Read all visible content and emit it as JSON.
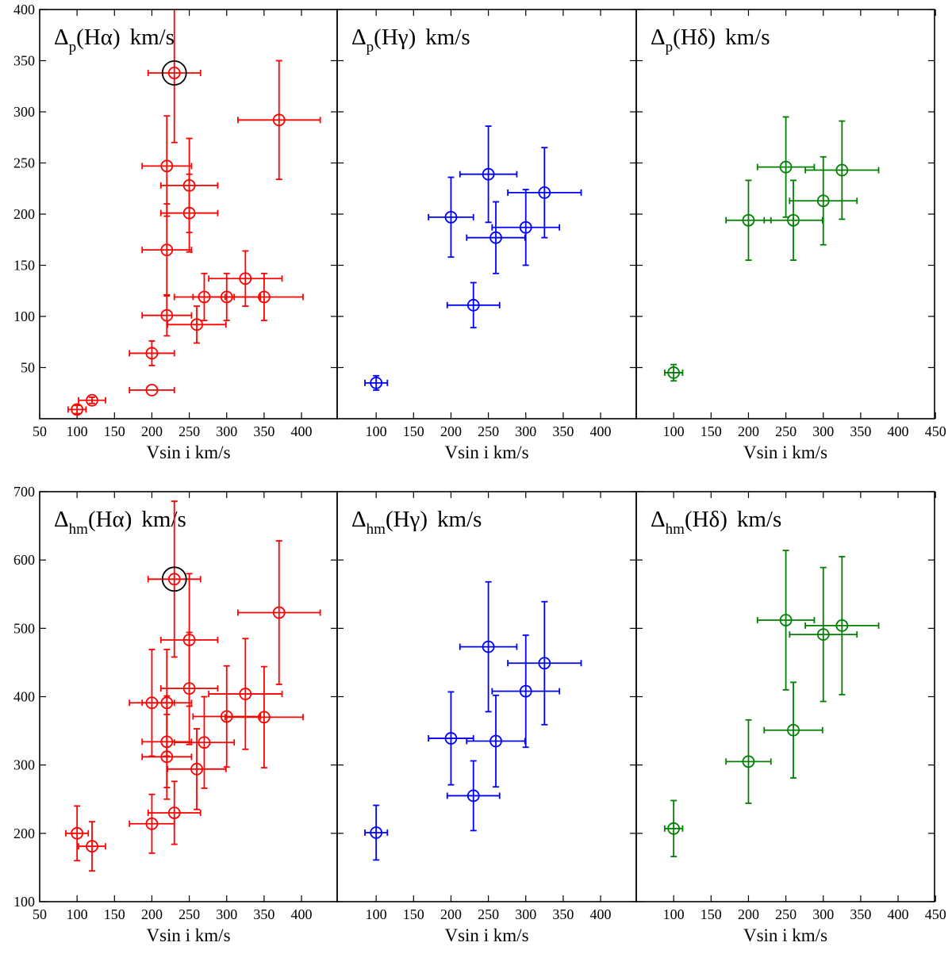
{
  "figure": {
    "xlabel": "Vsin i  km/s",
    "x_tick_labels_left": [
      "50",
      "100",
      "150",
      "200",
      "250",
      "300",
      "350",
      "400"
    ],
    "x_tick_labels_mid": [
      "100",
      "150",
      "200",
      "250",
      "300",
      "350",
      "400"
    ],
    "x_tick_labels_right": [
      "100",
      "150",
      "200",
      "250",
      "300",
      "350",
      "400",
      "450"
    ],
    "y_tick_labels_top": [
      "50",
      "100",
      "150",
      "200",
      "250",
      "300",
      "350",
      "400"
    ],
    "y_tick_labels_bottom": [
      "100",
      "200",
      "300",
      "400",
      "500",
      "600",
      "700"
    ],
    "colors": {
      "halpha": "#ff0000",
      "hgamma": "#0000ff",
      "hdelta": "#008000",
      "highlight": "#000000"
    }
  },
  "chart_data": [
    {
      "type": "scatter",
      "title": {
        "prefix": "Δ",
        "sub": "p",
        "line": "(Hα)",
        "unit": "km/s"
      },
      "xlabel": "Vsin i  km/s",
      "ylabel": "",
      "xlim": [
        50,
        440
      ],
      "ylim": [
        0,
        400
      ],
      "color": "#ff0000",
      "points": [
        {
          "x": 100,
          "y": 9,
          "xerr": 12,
          "yerr": 4
        },
        {
          "x": 120,
          "y": 18,
          "xerr": 18,
          "yerr": 3
        },
        {
          "x": 200,
          "y": 28,
          "xerr": 30,
          "yerr": 0
        },
        {
          "x": 200,
          "y": 64,
          "xerr": 30,
          "yerr": 12
        },
        {
          "x": 220,
          "y": 101,
          "xerr": 33,
          "yerr": 20
        },
        {
          "x": 220,
          "y": 165,
          "xerr": 33,
          "yerr": 45
        },
        {
          "x": 220,
          "y": 247,
          "xerr": 33,
          "yerr": 49
        },
        {
          "x": 230,
          "y": 338,
          "xerr": 35,
          "yerr": 68,
          "highlight": true
        },
        {
          "x": 250,
          "y": 228,
          "xerr": 38,
          "yerr": 46
        },
        {
          "x": 250,
          "y": 201,
          "xerr": 38,
          "yerr": 38
        },
        {
          "x": 260,
          "y": 92,
          "xerr": 39,
          "yerr": 18
        },
        {
          "x": 270,
          "y": 119,
          "xerr": 40,
          "yerr": 23
        },
        {
          "x": 300,
          "y": 119,
          "xerr": 45,
          "yerr": 23
        },
        {
          "x": 325,
          "y": 137,
          "xerr": 49,
          "yerr": 27
        },
        {
          "x": 350,
          "y": 119,
          "xerr": 52,
          "yerr": 23
        },
        {
          "x": 370,
          "y": 292,
          "xerr": 55,
          "yerr": 58
        }
      ]
    },
    {
      "type": "scatter",
      "title": {
        "prefix": "Δ",
        "sub": "p",
        "line": "(Hγ)",
        "unit": "km/s"
      },
      "xlabel": "Vsin i  km/s",
      "ylabel": "",
      "xlim": [
        50,
        440
      ],
      "ylim": [
        0,
        400
      ],
      "color": "#0000ff",
      "points": [
        {
          "x": 100,
          "y": 35,
          "xerr": 15,
          "yerr": 7
        },
        {
          "x": 200,
          "y": 197,
          "xerr": 30,
          "yerr": 39
        },
        {
          "x": 230,
          "y": 111,
          "xerr": 35,
          "yerr": 22
        },
        {
          "x": 250,
          "y": 239,
          "xerr": 38,
          "yerr": 47
        },
        {
          "x": 260,
          "y": 177,
          "xerr": 39,
          "yerr": 35
        },
        {
          "x": 300,
          "y": 187,
          "xerr": 45,
          "yerr": 37
        },
        {
          "x": 325,
          "y": 221,
          "xerr": 49,
          "yerr": 44
        }
      ]
    },
    {
      "type": "scatter",
      "title": {
        "prefix": "Δ",
        "sub": "p",
        "line": "(Hδ)",
        "unit": "km/s"
      },
      "xlabel": "Vsin i  km/s",
      "ylabel": "",
      "xlim": [
        50,
        440
      ],
      "ylim": [
        0,
        400
      ],
      "color": "#008000",
      "points": [
        {
          "x": 100,
          "y": 45,
          "xerr": 12,
          "yerr": 8
        },
        {
          "x": 200,
          "y": 194,
          "xerr": 30,
          "yerr": 39
        },
        {
          "x": 250,
          "y": 246,
          "xerr": 38,
          "yerr": 49
        },
        {
          "x": 260,
          "y": 194,
          "xerr": 39,
          "yerr": 39
        },
        {
          "x": 300,
          "y": 213,
          "xerr": 45,
          "yerr": 43
        },
        {
          "x": 325,
          "y": 243,
          "xerr": 49,
          "yerr": 48
        }
      ]
    },
    {
      "type": "scatter",
      "title": {
        "prefix": "Δ",
        "sub": "hm",
        "line": "(Hα)",
        "unit": "km/s"
      },
      "xlabel": "Vsin i  km/s",
      "ylabel": "",
      "xlim": [
        50,
        440
      ],
      "ylim": [
        100,
        700
      ],
      "color": "#ff0000",
      "points": [
        {
          "x": 100,
          "y": 200,
          "xerr": 15,
          "yerr": 40
        },
        {
          "x": 120,
          "y": 181,
          "xerr": 18,
          "yerr": 36
        },
        {
          "x": 200,
          "y": 214,
          "xerr": 30,
          "yerr": 43
        },
        {
          "x": 200,
          "y": 391,
          "xerr": 30,
          "yerr": 78
        },
        {
          "x": 220,
          "y": 391,
          "xerr": 33,
          "yerr": 78
        },
        {
          "x": 220,
          "y": 334,
          "xerr": 33,
          "yerr": 67
        },
        {
          "x": 220,
          "y": 312,
          "xerr": 33,
          "yerr": 62
        },
        {
          "x": 230,
          "y": 572,
          "xerr": 35,
          "yerr": 114,
          "highlight": true
        },
        {
          "x": 230,
          "y": 230,
          "xerr": 35,
          "yerr": 46
        },
        {
          "x": 250,
          "y": 483,
          "xerr": 38,
          "yerr": 97
        },
        {
          "x": 250,
          "y": 412,
          "xerr": 38,
          "yerr": 82
        },
        {
          "x": 260,
          "y": 294,
          "xerr": 39,
          "yerr": 59
        },
        {
          "x": 270,
          "y": 333,
          "xerr": 40,
          "yerr": 67
        },
        {
          "x": 300,
          "y": 371,
          "xerr": 45,
          "yerr": 74
        },
        {
          "x": 325,
          "y": 404,
          "xerr": 49,
          "yerr": 81
        },
        {
          "x": 350,
          "y": 370,
          "xerr": 52,
          "yerr": 74
        },
        {
          "x": 370,
          "y": 523,
          "xerr": 55,
          "yerr": 105
        }
      ]
    },
    {
      "type": "scatter",
      "title": {
        "prefix": "Δ",
        "sub": "hm",
        "line": "(Hγ)",
        "unit": "km/s"
      },
      "xlabel": "Vsin i  km/s",
      "ylabel": "",
      "xlim": [
        50,
        440
      ],
      "ylim": [
        100,
        700
      ],
      "color": "#0000ff",
      "points": [
        {
          "x": 100,
          "y": 201,
          "xerr": 15,
          "yerr": 40
        },
        {
          "x": 200,
          "y": 339,
          "xerr": 30,
          "yerr": 68
        },
        {
          "x": 230,
          "y": 255,
          "xerr": 35,
          "yerr": 51
        },
        {
          "x": 250,
          "y": 473,
          "xerr": 38,
          "yerr": 95
        },
        {
          "x": 260,
          "y": 335,
          "xerr": 39,
          "yerr": 67
        },
        {
          "x": 300,
          "y": 408,
          "xerr": 45,
          "yerr": 82
        },
        {
          "x": 325,
          "y": 449,
          "xerr": 49,
          "yerr": 90
        }
      ]
    },
    {
      "type": "scatter",
      "title": {
        "prefix": "Δ",
        "sub": "hm",
        "line": "(Hδ)",
        "unit": "km/s"
      },
      "xlabel": "Vsin i  km/s",
      "ylabel": "",
      "xlim": [
        50,
        440
      ],
      "ylim": [
        100,
        700
      ],
      "color": "#008000",
      "points": [
        {
          "x": 100,
          "y": 207,
          "xerr": 12,
          "yerr": 41
        },
        {
          "x": 200,
          "y": 305,
          "xerr": 30,
          "yerr": 61
        },
        {
          "x": 250,
          "y": 512,
          "xerr": 38,
          "yerr": 102
        },
        {
          "x": 260,
          "y": 351,
          "xerr": 39,
          "yerr": 70
        },
        {
          "x": 300,
          "y": 491,
          "xerr": 45,
          "yerr": 98
        },
        {
          "x": 325,
          "y": 504,
          "xerr": 49,
          "yerr": 101
        }
      ]
    }
  ]
}
